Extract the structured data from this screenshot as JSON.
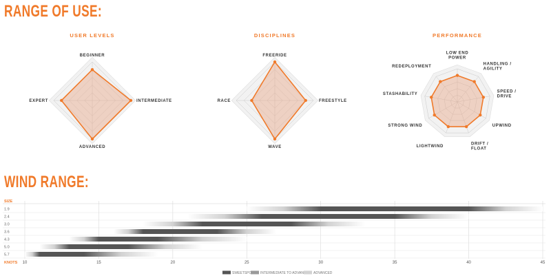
{
  "headings": {
    "range_of_use": "RANGE OF USE:",
    "wind_range": "WIND RANGE:"
  },
  "colors": {
    "accent": "#f07a2a",
    "fill": "#e8a98a",
    "grid": "#c8c8c8",
    "sweetspot": "#555555",
    "intermediate": "#9a9a9a",
    "advanced": "#d2d2d2"
  },
  "chart_data": [
    {
      "type": "radar",
      "title": "USER LEVELS",
      "axes": [
        "BEGINNER",
        "INTERMEDIATE",
        "ADVANCED",
        "EXPERT"
      ],
      "values": [
        0.8,
        1.0,
        1.0,
        0.8
      ],
      "scale": [
        0,
        1
      ]
    },
    {
      "type": "radar",
      "title": "DISCIPLINES",
      "axes": [
        "FREERIDE",
        "FREESTYLE",
        "WAVE",
        "RACE"
      ],
      "values": [
        1.0,
        0.8,
        1.0,
        0.6
      ],
      "scale": [
        0,
        1
      ]
    },
    {
      "type": "radar",
      "title": "PERFORMANCE",
      "axes": [
        "LOW END\nPOWER",
        "HANDLING /\nAGILITY",
        "SPEED /\nDRIVE",
        "UPWIND",
        "DRIFT /\nFLOAT",
        "LIGHTWIND",
        "STRONG WIND",
        "STASHABILITY",
        "REDEPLOYMENT"
      ],
      "values": [
        0.8,
        0.8,
        0.8,
        0.8,
        0.8,
        0.8,
        0.8,
        0.8,
        0.8
      ],
      "scale": [
        0,
        1
      ]
    },
    {
      "type": "range-bar",
      "title": "WIND RANGE",
      "y_header": "SIZE",
      "x_header": "KNOTS",
      "xlim": [
        10,
        45
      ],
      "xticks": [
        10,
        15,
        20,
        25,
        30,
        35,
        40,
        45
      ],
      "series": [
        {
          "size": "1.9",
          "min": 25,
          "max": 45,
          "sweet": [
            30,
            40
          ]
        },
        {
          "size": "2.4",
          "min": 21,
          "max": 40,
          "sweet": [
            26,
            35
          ]
        },
        {
          "size": "3.0",
          "min": 18,
          "max": 33,
          "sweet": [
            22,
            28
          ]
        },
        {
          "size": "3.6",
          "min": 16,
          "max": 27,
          "sweet": [
            18,
            23
          ]
        },
        {
          "size": "4.3",
          "min": 13,
          "max": 25,
          "sweet": [
            15,
            19
          ]
        },
        {
          "size": "5.0",
          "min": 11,
          "max": 22,
          "sweet": [
            13,
            17
          ]
        },
        {
          "size": "5.7",
          "min": 10,
          "max": 19,
          "sweet": [
            11,
            14
          ]
        }
      ],
      "legend": [
        "SWEETSPOT",
        "INTERMEDIATE TO ADVANCED",
        "ADVANCED"
      ]
    }
  ]
}
